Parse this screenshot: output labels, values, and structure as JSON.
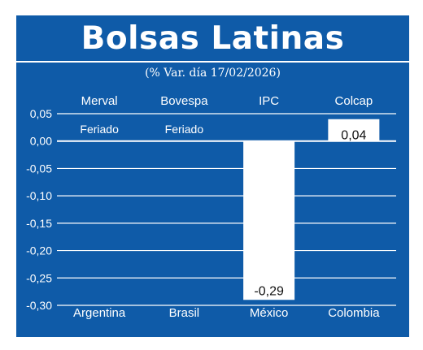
{
  "chart_data": {
    "type": "bar",
    "title": "Bolsas Latinas",
    "subtitle": "(% Var. día 17/02/2026)",
    "indices": [
      "Merval",
      "Bovespa",
      "IPC",
      "Colcap"
    ],
    "categories": [
      "Argentina",
      "Brasil",
      "México",
      "Colombia"
    ],
    "values": [
      null,
      null,
      -0.29,
      0.04
    ],
    "value_labels": [
      "",
      "",
      "-0,29",
      "0,04"
    ],
    "notes": [
      "Feriado",
      "Feriado",
      "",
      ""
    ],
    "ylim": [
      -0.3,
      0.05
    ],
    "yticks": [
      0.05,
      0.0,
      -0.05,
      -0.1,
      -0.15,
      -0.2,
      -0.25,
      -0.3
    ],
    "ytick_labels": [
      "0,05",
      "0,00",
      "-0,05",
      "-0,10",
      "-0,15",
      "-0,20",
      "-0,25",
      "-0,30"
    ],
    "grid": true
  },
  "colors": {
    "background": "#0f5ba8",
    "bar": "#ffffff",
    "text": "#ffffff",
    "grid": "#ffffff"
  }
}
